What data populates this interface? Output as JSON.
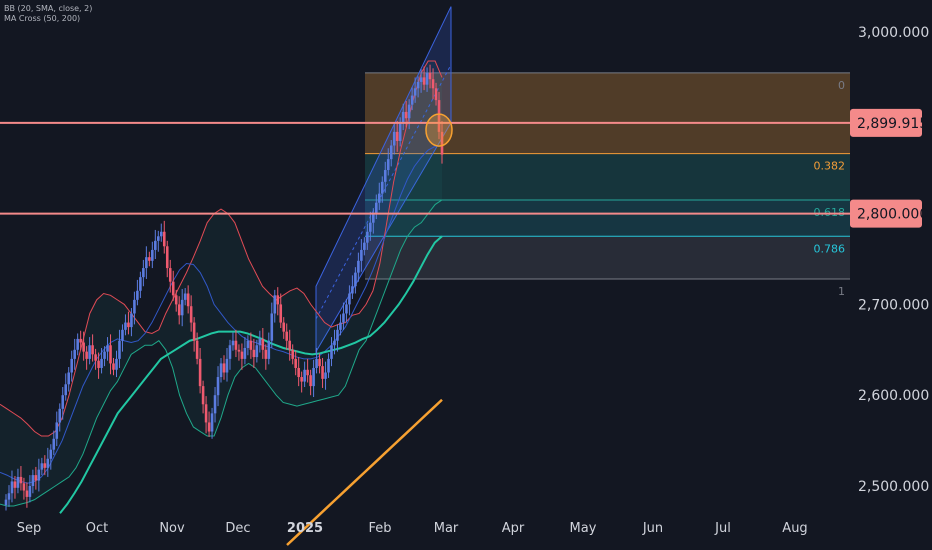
{
  "indicators": [
    {
      "label": "BB (20, SMA, close, 2)"
    },
    {
      "label": "MA Cross (50, 200)"
    }
  ],
  "colors": {
    "background": "#131722",
    "up_candle": "#5b7ce0",
    "down_candle": "#ef5a6f",
    "bb_upper": "#e04b55",
    "bb_basis": "#3158c8",
    "bb_lower": "#1fa88a",
    "ma50": "#22c7a3",
    "ma200": "#f7a131",
    "channel": "#3b63e0",
    "resistance": "#f48a8a",
    "fib_0": "#787b86",
    "fib_0382": "#f29d38",
    "fib_0618": "#26a69a",
    "fib_0786": "#26c6da",
    "fib_1": "#787b86",
    "circle": "#f7a131"
  },
  "chart_data": {
    "type": "candlestick",
    "title": "",
    "xlabel": "",
    "ylabel": "",
    "ylim": [
      2460,
      3050
    ],
    "y_ticks": [
      {
        "value": 3000,
        "label": "3,000.000"
      },
      {
        "value": 2700,
        "label": "2,700.000"
      },
      {
        "value": 2600,
        "label": "2,600.000"
      },
      {
        "value": 2500,
        "label": "2,500.000"
      }
    ],
    "x_ticks": [
      {
        "label": "Sep",
        "bold": false
      },
      {
        "label": "Oct",
        "bold": false
      },
      {
        "label": "Nov",
        "bold": false
      },
      {
        "label": "Dec",
        "bold": false
      },
      {
        "label": "2025",
        "bold": true
      },
      {
        "label": "Feb",
        "bold": false
      },
      {
        "label": "Mar",
        "bold": false
      },
      {
        "label": "Apr",
        "bold": false
      },
      {
        "label": "May",
        "bold": false
      },
      {
        "label": "Jun",
        "bold": false
      },
      {
        "label": "Jul",
        "bold": false
      },
      {
        "label": "Aug",
        "bold": false
      }
    ],
    "price_levels": [
      {
        "label": "2,899.915",
        "value": 2899.915
      },
      {
        "label": "2,800.000",
        "value": 2800
      }
    ],
    "fibonacci": [
      {
        "label": "0",
        "value": 2955,
        "color": "#787b86"
      },
      {
        "label": "0.382",
        "value": 2866,
        "color": "#f29d38"
      },
      {
        "label": "0.618",
        "value": 2815,
        "color": "#26a69a"
      },
      {
        "label": "0.786",
        "value": 2775,
        "color": "#26c6da"
      },
      {
        "label": "1",
        "value": 2728,
        "color": "#787b86"
      }
    ],
    "closes": [
      2485,
      2492,
      2505,
      2498,
      2510,
      2503,
      2495,
      2488,
      2500,
      2512,
      2506,
      2518,
      2525,
      2520,
      2530,
      2540,
      2552,
      2570,
      2585,
      2600,
      2612,
      2625,
      2640,
      2650,
      2662,
      2658,
      2648,
      2640,
      2655,
      2645,
      2638,
      2630,
      2640,
      2648,
      2655,
      2635,
      2628,
      2640,
      2660,
      2672,
      2680,
      2675,
      2690,
      2705,
      2715,
      2730,
      2740,
      2752,
      2748,
      2760,
      2770,
      2775,
      2780,
      2764,
      2740,
      2725,
      2710,
      2700,
      2688,
      2705,
      2712,
      2698,
      2680,
      2660,
      2640,
      2610,
      2590,
      2570,
      2560,
      2580,
      2600,
      2620,
      2635,
      2625,
      2640,
      2655,
      2660,
      2650,
      2648,
      2640,
      2652,
      2660,
      2650,
      2642,
      2655,
      2662,
      2650,
      2640,
      2660,
      2690,
      2710,
      2700,
      2680,
      2670,
      2660,
      2650,
      2640,
      2630,
      2620,
      2615,
      2628,
      2622,
      2610,
      2630,
      2640,
      2632,
      2618,
      2625,
      2640,
      2655,
      2660,
      2672,
      2680,
      2690,
      2700,
      2712,
      2720,
      2735,
      2748,
      2760,
      2768,
      2780,
      2790,
      2800,
      2812,
      2822,
      2835,
      2848,
      2860,
      2875,
      2890,
      2880,
      2900,
      2912,
      2905,
      2920,
      2930,
      2938,
      2945,
      2950,
      2942,
      2955,
      2948,
      2938,
      2925,
      2890,
      2865
    ],
    "bb_upper": [
      2590,
      2585,
      2580,
      2575,
      2568,
      2560,
      2555,
      2555,
      2560,
      2575,
      2600,
      2630,
      2660,
      2690,
      2705,
      2712,
      2710,
      2705,
      2700,
      2690,
      2680,
      2670,
      2668,
      2672,
      2690,
      2705,
      2720,
      2735,
      2752,
      2770,
      2790,
      2800,
      2805,
      2800,
      2790,
      2770,
      2750,
      2735,
      2720,
      2712,
      2705,
      2710,
      2715,
      2718,
      2712,
      2700,
      2690,
      2680,
      2675,
      2678,
      2680,
      2688,
      2690,
      2700,
      2715,
      2745,
      2790,
      2835,
      2870,
      2900,
      2930,
      2955,
      2968,
      2968,
      2950
    ],
    "bb_basis": [
      2515,
      2512,
      2508,
      2505,
      2503,
      2505,
      2510,
      2520,
      2535,
      2550,
      2570,
      2590,
      2610,
      2625,
      2640,
      2650,
      2658,
      2662,
      2660,
      2658,
      2660,
      2668,
      2680,
      2695,
      2710,
      2725,
      2738,
      2745,
      2744,
      2735,
      2720,
      2700,
      2690,
      2680,
      2672,
      2665,
      2660,
      2658,
      2655,
      2653,
      2650,
      2648,
      2645,
      2642,
      2640,
      2640,
      2642,
      2648,
      2655,
      2665,
      2675,
      2690,
      2705,
      2720,
      2738,
      2758,
      2780,
      2800,
      2820,
      2838,
      2852,
      2862,
      2870,
      2874,
      2875
    ],
    "bb_lower": [
      2480,
      2478,
      2478,
      2480,
      2482,
      2485,
      2490,
      2495,
      2500,
      2505,
      2510,
      2520,
      2535,
      2555,
      2575,
      2590,
      2605,
      2615,
      2630,
      2645,
      2650,
      2655,
      2655,
      2660,
      2650,
      2630,
      2600,
      2580,
      2565,
      2560,
      2555,
      2555,
      2575,
      2600,
      2620,
      2630,
      2635,
      2630,
      2620,
      2610,
      2600,
      2592,
      2590,
      2588,
      2590,
      2592,
      2594,
      2596,
      2598,
      2600,
      2610,
      2630,
      2650,
      2660,
      2680,
      2700,
      2720,
      2740,
      2760,
      2775,
      2785,
      2790,
      2800,
      2810,
      2815
    ],
    "ma50": [
      2470,
      2480,
      2492,
      2505,
      2520,
      2535,
      2550,
      2565,
      2580,
      2590,
      2600,
      2610,
      2620,
      2630,
      2640,
      2645,
      2650,
      2655,
      2660,
      2662,
      2665,
      2668,
      2670,
      2670,
      2670,
      2670,
      2668,
      2665,
      2662,
      2658,
      2655,
      2652,
      2650,
      2648,
      2646,
      2645,
      2646,
      2648,
      2650,
      2652,
      2655,
      2658,
      2662,
      2665,
      2672,
      2680,
      2690,
      2700,
      2712,
      2725,
      2740,
      2755,
      2768,
      2775
    ],
    "ma200": [
      2435,
      2445,
      2455,
      2465,
      2475,
      2485,
      2495,
      2505,
      2515,
      2525,
      2535,
      2545,
      2555,
      2565,
      2575,
      2585,
      2595
    ],
    "channel": {
      "left_top": 2720,
      "left_bottom": 2648,
      "right_top": 3028,
      "right_bottom": 2900
    },
    "annotations": [
      {
        "type": "circle",
        "value": 2892
      }
    ]
  }
}
